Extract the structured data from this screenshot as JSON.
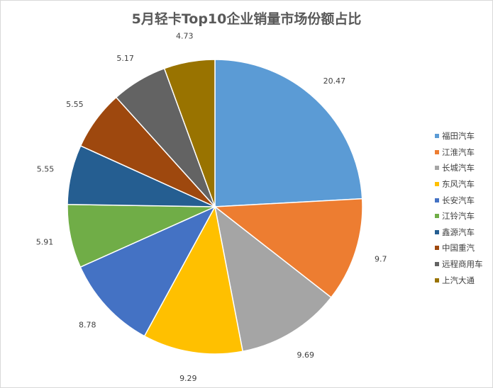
{
  "chart_data": {
    "type": "pie",
    "title": "5月轻卡Top10企业销量市场份额占比",
    "categories": [
      "福田汽车",
      "江淮汽车",
      "长城汽车",
      "东风汽车",
      "长安汽车",
      "江铃汽车",
      "鑫源汽车",
      "中国重汽",
      "远程商用车",
      "上汽大通"
    ],
    "values": [
      20.47,
      9.7,
      9.69,
      9.29,
      8.78,
      5.91,
      5.55,
      5.55,
      5.17,
      4.73
    ],
    "data_labels": [
      "20.47",
      "9.7",
      "9.69",
      "9.29",
      "8.78",
      "5.91",
      "5.55",
      "5.55",
      "5.17",
      "4.73"
    ],
    "colors": [
      "#5b9bd5",
      "#ed7d31",
      "#a5a5a5",
      "#ffc000",
      "#4472c4",
      "#70ad47",
      "#255e91",
      "#9e480e",
      "#636363",
      "#997300"
    ],
    "legend_position": "right",
    "start_angle": "top, clockwise"
  }
}
